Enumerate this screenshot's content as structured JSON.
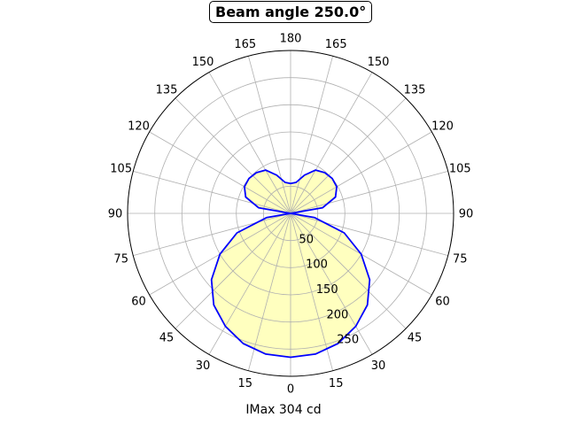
{
  "chart_data": {
    "type": "polar_area",
    "title": "Beam angle 250.0°",
    "xlabel": "IMax 304 cd",
    "angle_tick_labels": [
      "0",
      "15",
      "30",
      "45",
      "60",
      "75",
      "90",
      "105",
      "120",
      "135",
      "150",
      "165",
      "180",
      "165",
      "150",
      "135",
      "120",
      "105",
      "90",
      "75",
      "60",
      "45",
      "30",
      "15"
    ],
    "radial_tick_labels": [
      "50",
      "100",
      "150",
      "200",
      "250"
    ],
    "r_max": 300,
    "grid": true,
    "line_color": "#0000ff",
    "fill_color": "#ffffbf",
    "series": [
      {
        "angles_deg": [
          0,
          10,
          20,
          30,
          40,
          50,
          60,
          70,
          80,
          90,
          100,
          110,
          120,
          130,
          140,
          150,
          160,
          170,
          180
        ],
        "values": [
          265,
          263,
          255,
          240,
          220,
          190,
          150,
          105,
          45,
          0,
          60,
          88,
          98,
          100,
          98,
          92,
          75,
          58,
          55
        ]
      }
    ]
  }
}
